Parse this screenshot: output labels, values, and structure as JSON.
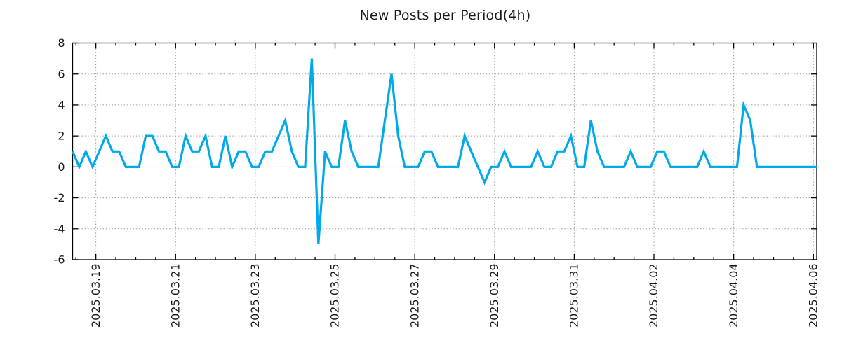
{
  "chart_data": {
    "type": "line",
    "title": "New Posts per Period(4h)",
    "period_hours": 4,
    "ylim": [
      -6,
      8
    ],
    "y_ticks": [
      8,
      6,
      4,
      2,
      0,
      -2,
      -4,
      -6
    ],
    "x_tick_labels": [
      "2025.03.19",
      "2025.03.21",
      "2025.03.23",
      "2025.03.25",
      "2025.03.27",
      "2025.03.29",
      "2025.03.31",
      "2025.04.02",
      "2025.04.04",
      "2025.04.06"
    ],
    "x_tick_first_index": 3.5,
    "x_tick_index_step": 12,
    "x_minor_tick_first_index": 0.5,
    "x_minor_tick_index_step": 3,
    "grid": true,
    "legend_position": "none",
    "line_color": "#00a9e9",
    "grid_color": "#999999",
    "axis_color": "#000000",
    "text_color": "#1a1a1a",
    "values": [
      1,
      0,
      1,
      0,
      1,
      2,
      1,
      1,
      0,
      0,
      0,
      2,
      2,
      1,
      1,
      0,
      0,
      2,
      1,
      1,
      2,
      0,
      0,
      2,
      0,
      1,
      1,
      0,
      0,
      1,
      1,
      2,
      3,
      1,
      0,
      0,
      7,
      -5,
      1,
      0,
      0,
      3,
      1,
      0,
      0,
      0,
      0,
      3,
      6,
      2,
      0,
      0,
      0,
      1,
      1,
      0,
      0,
      0,
      0,
      2,
      1,
      0,
      -1,
      0,
      0,
      1,
      0,
      0,
      0,
      0,
      1,
      0,
      0,
      1,
      1,
      2,
      0,
      0,
      3,
      1,
      0,
      0,
      0,
      0,
      1,
      0,
      0,
      0,
      1,
      1,
      0,
      0,
      0,
      0,
      0,
      1,
      0,
      0,
      0,
      0,
      0,
      4,
      3,
      0,
      0,
      0,
      0,
      0,
      0,
      0,
      0,
      0,
      0
    ]
  }
}
